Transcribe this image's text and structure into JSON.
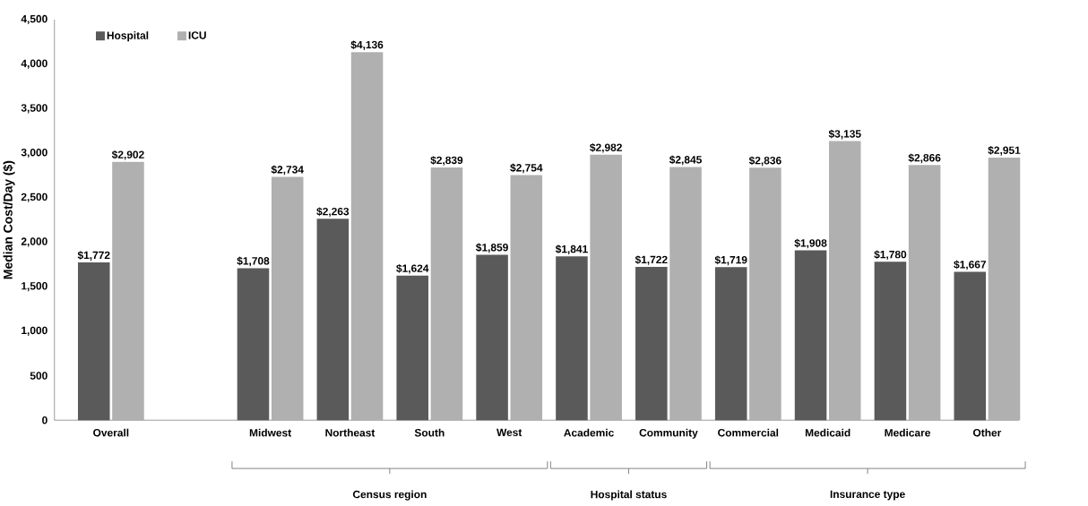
{
  "chart_data": {
    "type": "bar",
    "ylabel": "Median Cost/Day ($)",
    "categories": [
      "Overall",
      null,
      "Midwest",
      "Northeast",
      "South",
      "West",
      "Academic",
      "Community",
      "Commercial",
      "Medicaid",
      "Medicare",
      "Other"
    ],
    "series": [
      {
        "name": "Hospital",
        "color": "#5a5a5a",
        "values": [
          1772,
          null,
          1708,
          2263,
          1624,
          1859,
          1841,
          1722,
          1719,
          1908,
          1780,
          1667
        ],
        "value_labels": [
          "$1,772",
          null,
          "$1,708",
          "$2,263",
          "$1,624",
          "$1,859",
          "$1,841",
          "$1,722",
          "$1,719",
          "$1,908",
          "$1,780",
          "$1,667"
        ]
      },
      {
        "name": "ICU",
        "color": "#b0b0b0",
        "values": [
          2902,
          null,
          2734,
          4136,
          2839,
          2754,
          2982,
          2845,
          2836,
          3135,
          2866,
          2951
        ],
        "value_labels": [
          "$2,902",
          null,
          "$2,734",
          "$4,136",
          "$2,839",
          "$2,754",
          "$2,982",
          "$2,845",
          "$2,836",
          "$3,135",
          "$2,866",
          "$2,951"
        ]
      }
    ],
    "ylim": [
      0,
      4500
    ],
    "yticks": [
      0,
      500,
      {
        "value": 1000,
        "label": "1,000"
      },
      {
        "value": 1500,
        "label": "1,500"
      },
      {
        "value": 2000,
        "label": "2,000"
      },
      {
        "value": 2500,
        "label": "2,500"
      },
      {
        "value": 3000,
        "label": "3,000"
      },
      {
        "value": 3500,
        "label": "3,500"
      },
      {
        "value": 4000,
        "label": "4,000"
      },
      {
        "value": 4500,
        "label": "4,500"
      }
    ],
    "grid": false,
    "legend": "top left",
    "annotations": [
      "Census region",
      "Hospital status",
      "Insurance type"
    ]
  }
}
